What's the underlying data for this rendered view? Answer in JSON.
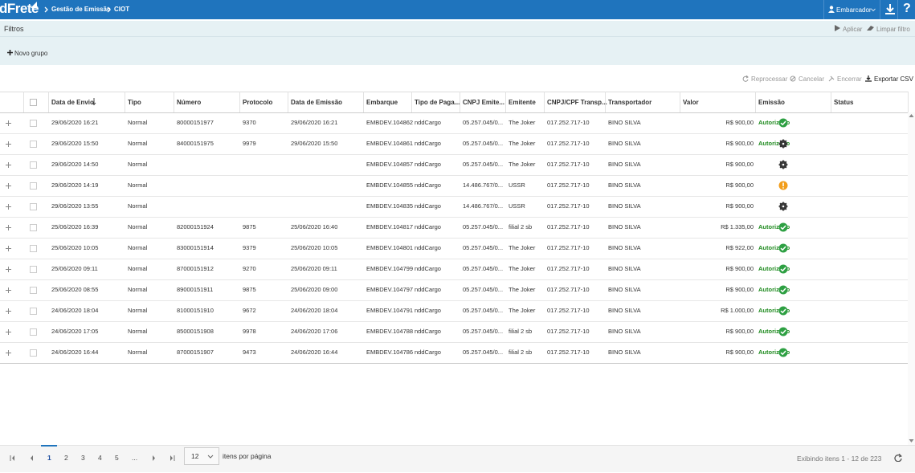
{
  "header": {
    "logo": "dFrete",
    "breadcrumbs": [
      "Gestão de Emissão",
      "CIOT"
    ],
    "user": "Embarcador",
    "help": "?"
  },
  "filters": {
    "title": "Filtros",
    "apply": "Aplicar",
    "clear": "Limpar filtro",
    "new_group": "Novo grupo"
  },
  "toolbar": [
    "Reprocessar",
    "Cancelar",
    "Encerrar",
    "Exportar CSV"
  ],
  "table": {
    "columns": [
      "Data de Envio",
      "Tipo",
      "Número",
      "Protocolo",
      "Data de Emissão",
      "Embarque",
      "Tipo de Paga...",
      "CNPJ Emite...",
      "Emitente",
      "CNPJ/CPF Transp...",
      "Transportador",
      "Valor",
      "Emissão",
      "Status"
    ],
    "rows": [
      [
        "29/06/2020 16:21",
        "Normal",
        "80000151977",
        "9370",
        "29/06/2020 16:21",
        "EMBDEV.104862",
        "nddCargo",
        "05.257.045/0...",
        "The Joker",
        "017.252.717-10",
        "BINO SILVA",
        "R$ 900,00",
        "Autorizado"
      ],
      [
        "29/06/2020 15:50",
        "Normal",
        "84000151975",
        "9979",
        "29/06/2020 15:50",
        "EMBDEV.104861",
        "nddCargo",
        "05.257.045/0...",
        "The Joker",
        "017.252.717-10",
        "BINO SILVA",
        "R$ 900,00",
        "Autorizado"
      ],
      [
        "29/06/2020 14:50",
        "Normal",
        null,
        null,
        null,
        "EMBDEV.104857",
        "nddCargo",
        "05.257.045/0...",
        "The Joker",
        "017.252.717-10",
        "BINO SILVA",
        "R$ 900,00",
        null
      ],
      [
        "29/06/2020 14:19",
        "Normal",
        null,
        null,
        null,
        "EMBDEV.104855",
        "nddCargo",
        "14.486.767/0...",
        "USSR",
        "017.252.717-10",
        "BINO SILVA",
        "R$ 900,00",
        null
      ],
      [
        "29/06/2020 13:55",
        "Normal",
        null,
        null,
        null,
        "EMBDEV.104835",
        "nddCargo",
        "14.486.767/0...",
        "USSR",
        "017.252.717-10",
        "BINO SILVA",
        "R$ 900,00",
        null
      ],
      [
        "25/06/2020 16:39",
        "Normal",
        "82000151924",
        "9875",
        "25/06/2020 16:40",
        "EMBDEV.104817",
        "nddCargo",
        "05.257.045/0...",
        "filial 2 sb",
        "017.252.717-10",
        "BINO SILVA",
        "R$ 1.335,00",
        "Autorizado"
      ],
      [
        "25/06/2020 10:05",
        "Normal",
        "83000151914",
        "9379",
        "25/06/2020 10:05",
        "EMBDEV.104801",
        "nddCargo",
        "05.257.045/0...",
        "The Joker",
        "017.252.717-10",
        "BINO SILVA",
        "R$ 922,00",
        "Autorizado"
      ],
      [
        "25/06/2020 09:11",
        "Normal",
        "87000151912",
        "9270",
        "25/06/2020 09:11",
        "EMBDEV.104799",
        "nddCargo",
        "05.257.045/0...",
        "The Joker",
        "017.252.717-10",
        "BINO SILVA",
        "R$ 900,00",
        "Autorizado"
      ],
      [
        "25/06/2020 08:55",
        "Normal",
        "89000151911",
        "9875",
        "25/06/2020 09:00",
        "EMBDEV.104797",
        "nddCargo",
        "05.257.045/0...",
        "The Joker",
        "017.252.717-10",
        "BINO SILVA",
        "R$ 900,00",
        "Autorizado"
      ],
      [
        "24/06/2020 18:04",
        "Normal",
        "81000151910",
        "9672",
        "24/06/2020 18:04",
        "EMBDEV.104791",
        "nddCargo",
        "05.257.045/0...",
        "The Joker",
        "017.252.717-10",
        "BINO SILVA",
        "R$ 1.000,00",
        "Autorizado"
      ],
      [
        "24/06/2020 17:05",
        "Normal",
        "85000151908",
        "9978",
        "24/06/2020 17:06",
        "EMBDEV.104788",
        "nddCargo",
        "05.257.045/0...",
        "filial 2 sb",
        "017.252.717-10",
        "BINO SILVA",
        "R$ 900,00",
        "Autorizado"
      ],
      [
        "24/06/2020 16:44",
        "Normal",
        "87000151907",
        "9473",
        "24/06/2020 16:44",
        "EMBDEV.104786",
        "nddCargo",
        "05.257.045/0...",
        "filial 2 sb",
        "017.252.717-10",
        "BINO SILVA",
        "R$ 900,00",
        "Autorizado"
      ]
    ],
    "emission_icons": [
      "check",
      "gear",
      "gear",
      "warning",
      "gear",
      "check",
      "check",
      "check",
      "check",
      "check",
      "check",
      "check"
    ]
  },
  "pagination": {
    "pages": [
      "1",
      "2",
      "3",
      "4",
      "5",
      "..."
    ],
    "current": "1",
    "page_size": "12",
    "page_size_label": "itens por página",
    "summary": "Exibindo itens 1 - 12 de 223"
  }
}
